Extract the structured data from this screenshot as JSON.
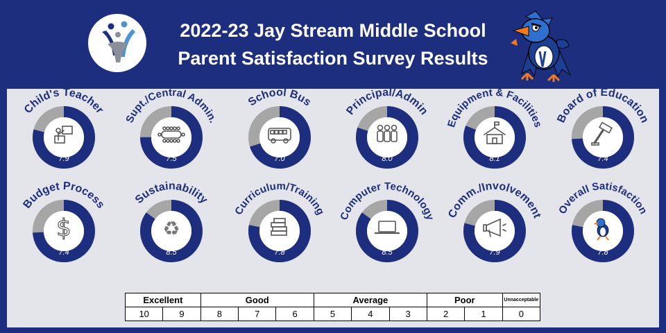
{
  "title": {
    "line1": "2022-23 Jay Stream Middle School",
    "line2": "Parent Satisfaction Survey Results"
  },
  "logo_icon": "school-people-logo-icon",
  "mascot_icon": "blue-jay-mascot-icon",
  "colors": {
    "header_bg": "#1e2e7f",
    "panel_bg": "#e4e5ea",
    "ring_fill": "#1e2e7f",
    "ring_remainder": "#a6a6a6",
    "label_color": "#1e2e7f"
  },
  "chart_data": {
    "type": "donut",
    "scale_max": 10,
    "items": [
      {
        "label": "Child's Teacher",
        "value": 7.9,
        "icon": "teacher-at-board-icon"
      },
      {
        "label": "Supt./Central Admin.",
        "value": 7.5,
        "icon": "conference-table-icon"
      },
      {
        "label": "School Bus",
        "value": 7.0,
        "icon": "school-bus-icon"
      },
      {
        "label": "Principal/Admin",
        "value": 8.0,
        "icon": "group-of-people-icon"
      },
      {
        "label": "Equipment & Facilities",
        "value": 8.1,
        "icon": "school-building-icon"
      },
      {
        "label": "Board of Education",
        "value": 7.4,
        "icon": "gavel-icon"
      },
      {
        "label": "Budget Process",
        "value": 7.4,
        "icon": "dollar-sign-icon"
      },
      {
        "label": "Sustainability",
        "value": 8.5,
        "icon": "recycle-icon"
      },
      {
        "label": "Curriculum/Training",
        "value": 7.8,
        "icon": "stack-of-books-icon"
      },
      {
        "label": "Computer Technology",
        "value": 8.5,
        "icon": "laptop-icon"
      },
      {
        "label": "Comm./Involvement",
        "value": 7.9,
        "icon": "megaphone-icon"
      },
      {
        "label": "Overall Satisfaction",
        "value": 7.8,
        "icon": "blue-jay-mascot-icon"
      }
    ]
  },
  "scale_legend": {
    "groups": [
      "Excellent",
      "Good",
      "Average",
      "Poor",
      "Unnacceptable"
    ],
    "numbers": [
      "10",
      "9",
      "8",
      "7",
      "6",
      "5",
      "4",
      "3",
      "2",
      "1",
      "0"
    ]
  }
}
